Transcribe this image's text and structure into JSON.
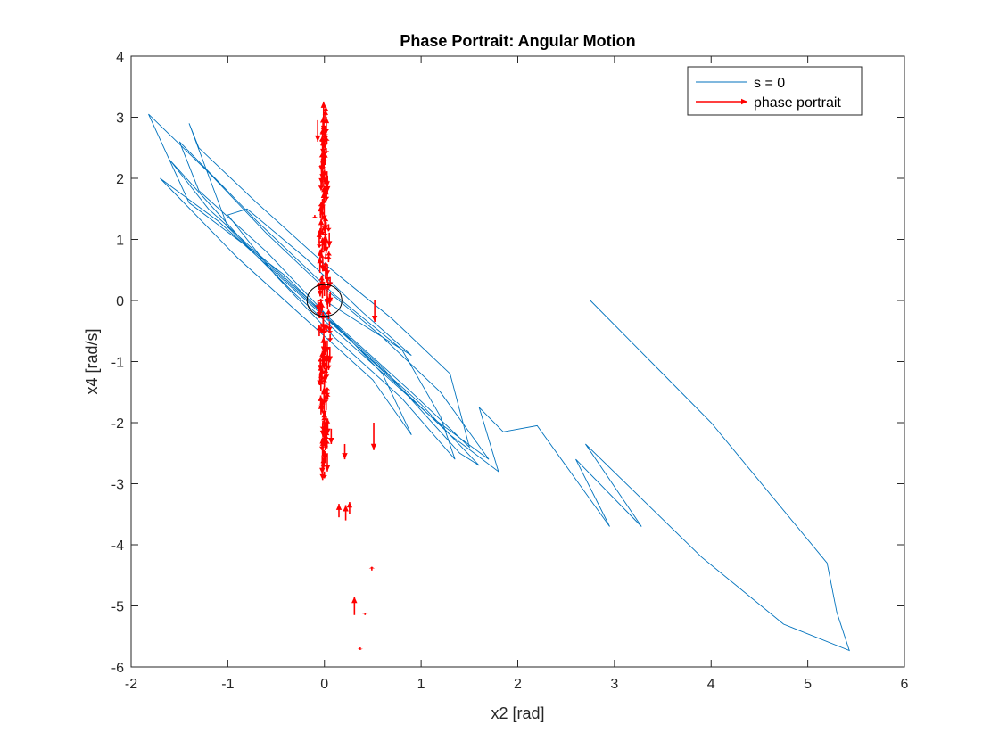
{
  "chart_data": {
    "type": "line",
    "title": "Phase Portrait: Angular Motion",
    "xlabel": "x2 [rad]",
    "ylabel": "x4 [rad/s]",
    "xlim": [
      -2,
      6
    ],
    "ylim": [
      -6,
      4
    ],
    "xticks": [
      "-2",
      "-1",
      "0",
      "1",
      "2",
      "3",
      "4",
      "5",
      "6"
    ],
    "yticks": [
      "-6",
      "-5",
      "-4",
      "-3",
      "-2",
      "-1",
      "0",
      "1",
      "2",
      "3",
      "4"
    ],
    "grid": false,
    "legend_position": "top-right",
    "colors": {
      "trajectory": "#0072BD",
      "quiver": "#FF0000",
      "circle": "#000000"
    },
    "legend": [
      {
        "label": "s = 0",
        "type": "line",
        "color": "#0072BD"
      },
      {
        "label": "phase portrait",
        "type": "arrow",
        "color": "#FF0000"
      }
    ],
    "series": [
      {
        "name": "s = 0",
        "type": "line",
        "color": "#0072BD",
        "points": [
          [
            2.75,
            0.0
          ],
          [
            4.0,
            -2.0
          ],
          [
            5.2,
            -4.3
          ],
          [
            5.3,
            -5.1
          ],
          [
            5.43,
            -5.73
          ],
          [
            4.75,
            -5.3
          ],
          [
            3.9,
            -4.2
          ],
          [
            2.7,
            -2.35
          ],
          [
            3.28,
            -3.7
          ],
          [
            2.6,
            -2.6
          ],
          [
            2.95,
            -3.7
          ],
          [
            2.2,
            -2.05
          ],
          [
            1.85,
            -2.15
          ],
          [
            1.6,
            -1.75
          ],
          [
            1.8,
            -2.8
          ],
          [
            1.3,
            -2.2
          ],
          [
            0.9,
            -1.6
          ],
          [
            0.5,
            -1.0
          ],
          [
            0.1,
            -0.4
          ],
          [
            -0.4,
            0.4
          ],
          [
            -0.9,
            1.0
          ],
          [
            -1.4,
            1.6
          ],
          [
            -1.82,
            3.05
          ],
          [
            -1.2,
            2.1
          ],
          [
            -0.6,
            1.1
          ],
          [
            0.0,
            0.2
          ],
          [
            0.6,
            -0.6
          ],
          [
            1.2,
            -1.5
          ],
          [
            1.7,
            -2.6
          ],
          [
            1.1,
            -1.9
          ],
          [
            0.4,
            -0.9
          ],
          [
            -0.3,
            0.1
          ],
          [
            -1.0,
            1.2
          ],
          [
            -1.4,
            2.9
          ],
          [
            -1.3,
            2.5
          ],
          [
            -0.7,
            1.6
          ],
          [
            0.0,
            0.6
          ],
          [
            0.7,
            -0.3
          ],
          [
            1.3,
            -1.2
          ],
          [
            1.5,
            -2.4
          ],
          [
            0.9,
            -1.5
          ],
          [
            0.2,
            -0.5
          ],
          [
            -0.5,
            0.5
          ],
          [
            -1.2,
            1.5
          ],
          [
            -1.6,
            2.3
          ],
          [
            -0.8,
            0.9
          ],
          [
            -0.1,
            -0.1
          ],
          [
            0.6,
            -1.1
          ],
          [
            1.4,
            -2.5
          ],
          [
            1.6,
            -2.7
          ],
          [
            1.0,
            -1.7
          ],
          [
            0.3,
            -0.7
          ],
          [
            -0.4,
            0.3
          ],
          [
            -1.1,
            1.3
          ],
          [
            -1.7,
            2.0
          ],
          [
            -0.9,
            0.7
          ],
          [
            -0.2,
            -0.3
          ],
          [
            0.5,
            -1.3
          ],
          [
            0.9,
            -2.2
          ],
          [
            0.6,
            -1.2
          ],
          [
            0.0,
            -0.2
          ],
          [
            -0.6,
            0.8
          ],
          [
            -1.3,
            1.8
          ],
          [
            -1.5,
            2.6
          ],
          [
            -0.7,
            1.3
          ],
          [
            0.1,
            0.1
          ],
          [
            0.8,
            -0.8
          ],
          [
            1.2,
            -1.9
          ],
          [
            1.35,
            -2.6
          ],
          [
            0.8,
            -1.6
          ],
          [
            0.1,
            -0.6
          ],
          [
            -0.5,
            0.4
          ],
          [
            -1.0,
            1.4
          ],
          [
            -0.8,
            1.5
          ],
          [
            -0.2,
            0.7
          ],
          [
            0.4,
            -0.2
          ],
          [
            0.9,
            -0.9
          ],
          [
            0.5,
            -0.5
          ],
          [
            0.0,
            0.0
          ]
        ]
      }
    ],
    "quiver": [
      {
        "x": 0.52,
        "y": 0.0,
        "u": 0.0,
        "v": -0.35
      },
      {
        "x": 0.51,
        "y": -2.0,
        "u": 0.0,
        "v": -0.45
      },
      {
        "x": 0.21,
        "y": -2.35,
        "u": 0.0,
        "v": -0.25
      },
      {
        "x": 0.15,
        "y": -3.55,
        "u": 0.0,
        "v": 0.22
      },
      {
        "x": 0.22,
        "y": -3.6,
        "u": 0.0,
        "v": 0.25
      },
      {
        "x": 0.26,
        "y": -3.5,
        "u": 0.0,
        "v": 0.2
      },
      {
        "x": 0.49,
        "y": -4.42,
        "u": 0.0,
        "v": 0.06
      },
      {
        "x": 0.31,
        "y": -5.15,
        "u": 0.0,
        "v": 0.3
      },
      {
        "x": 0.42,
        "y": -5.15,
        "u": 0.0,
        "v": 0.04
      },
      {
        "x": 0.37,
        "y": -5.68,
        "u": 0.0,
        "v": -0.04
      },
      {
        "x": -0.07,
        "y": 2.95,
        "u": 0.0,
        "v": -0.35
      },
      {
        "x": -0.03,
        "y": 2.2,
        "u": 0.0,
        "v": -0.3
      },
      {
        "x": -0.1,
        "y": 1.4,
        "u": 0.0,
        "v": -0.05
      },
      {
        "x": 0.03,
        "y": -2.5,
        "u": 0.0,
        "v": -0.3
      },
      {
        "x": 0.07,
        "y": -2.1,
        "u": 0.0,
        "v": -0.25
      }
    ],
    "quiver_band": {
      "x_center": 0.0,
      "x_half_width": 0.07,
      "y_min": -2.8,
      "y_max": 3.05
    },
    "circle": {
      "cx": 0.0,
      "cy": 0.0,
      "r": 0.18
    }
  }
}
